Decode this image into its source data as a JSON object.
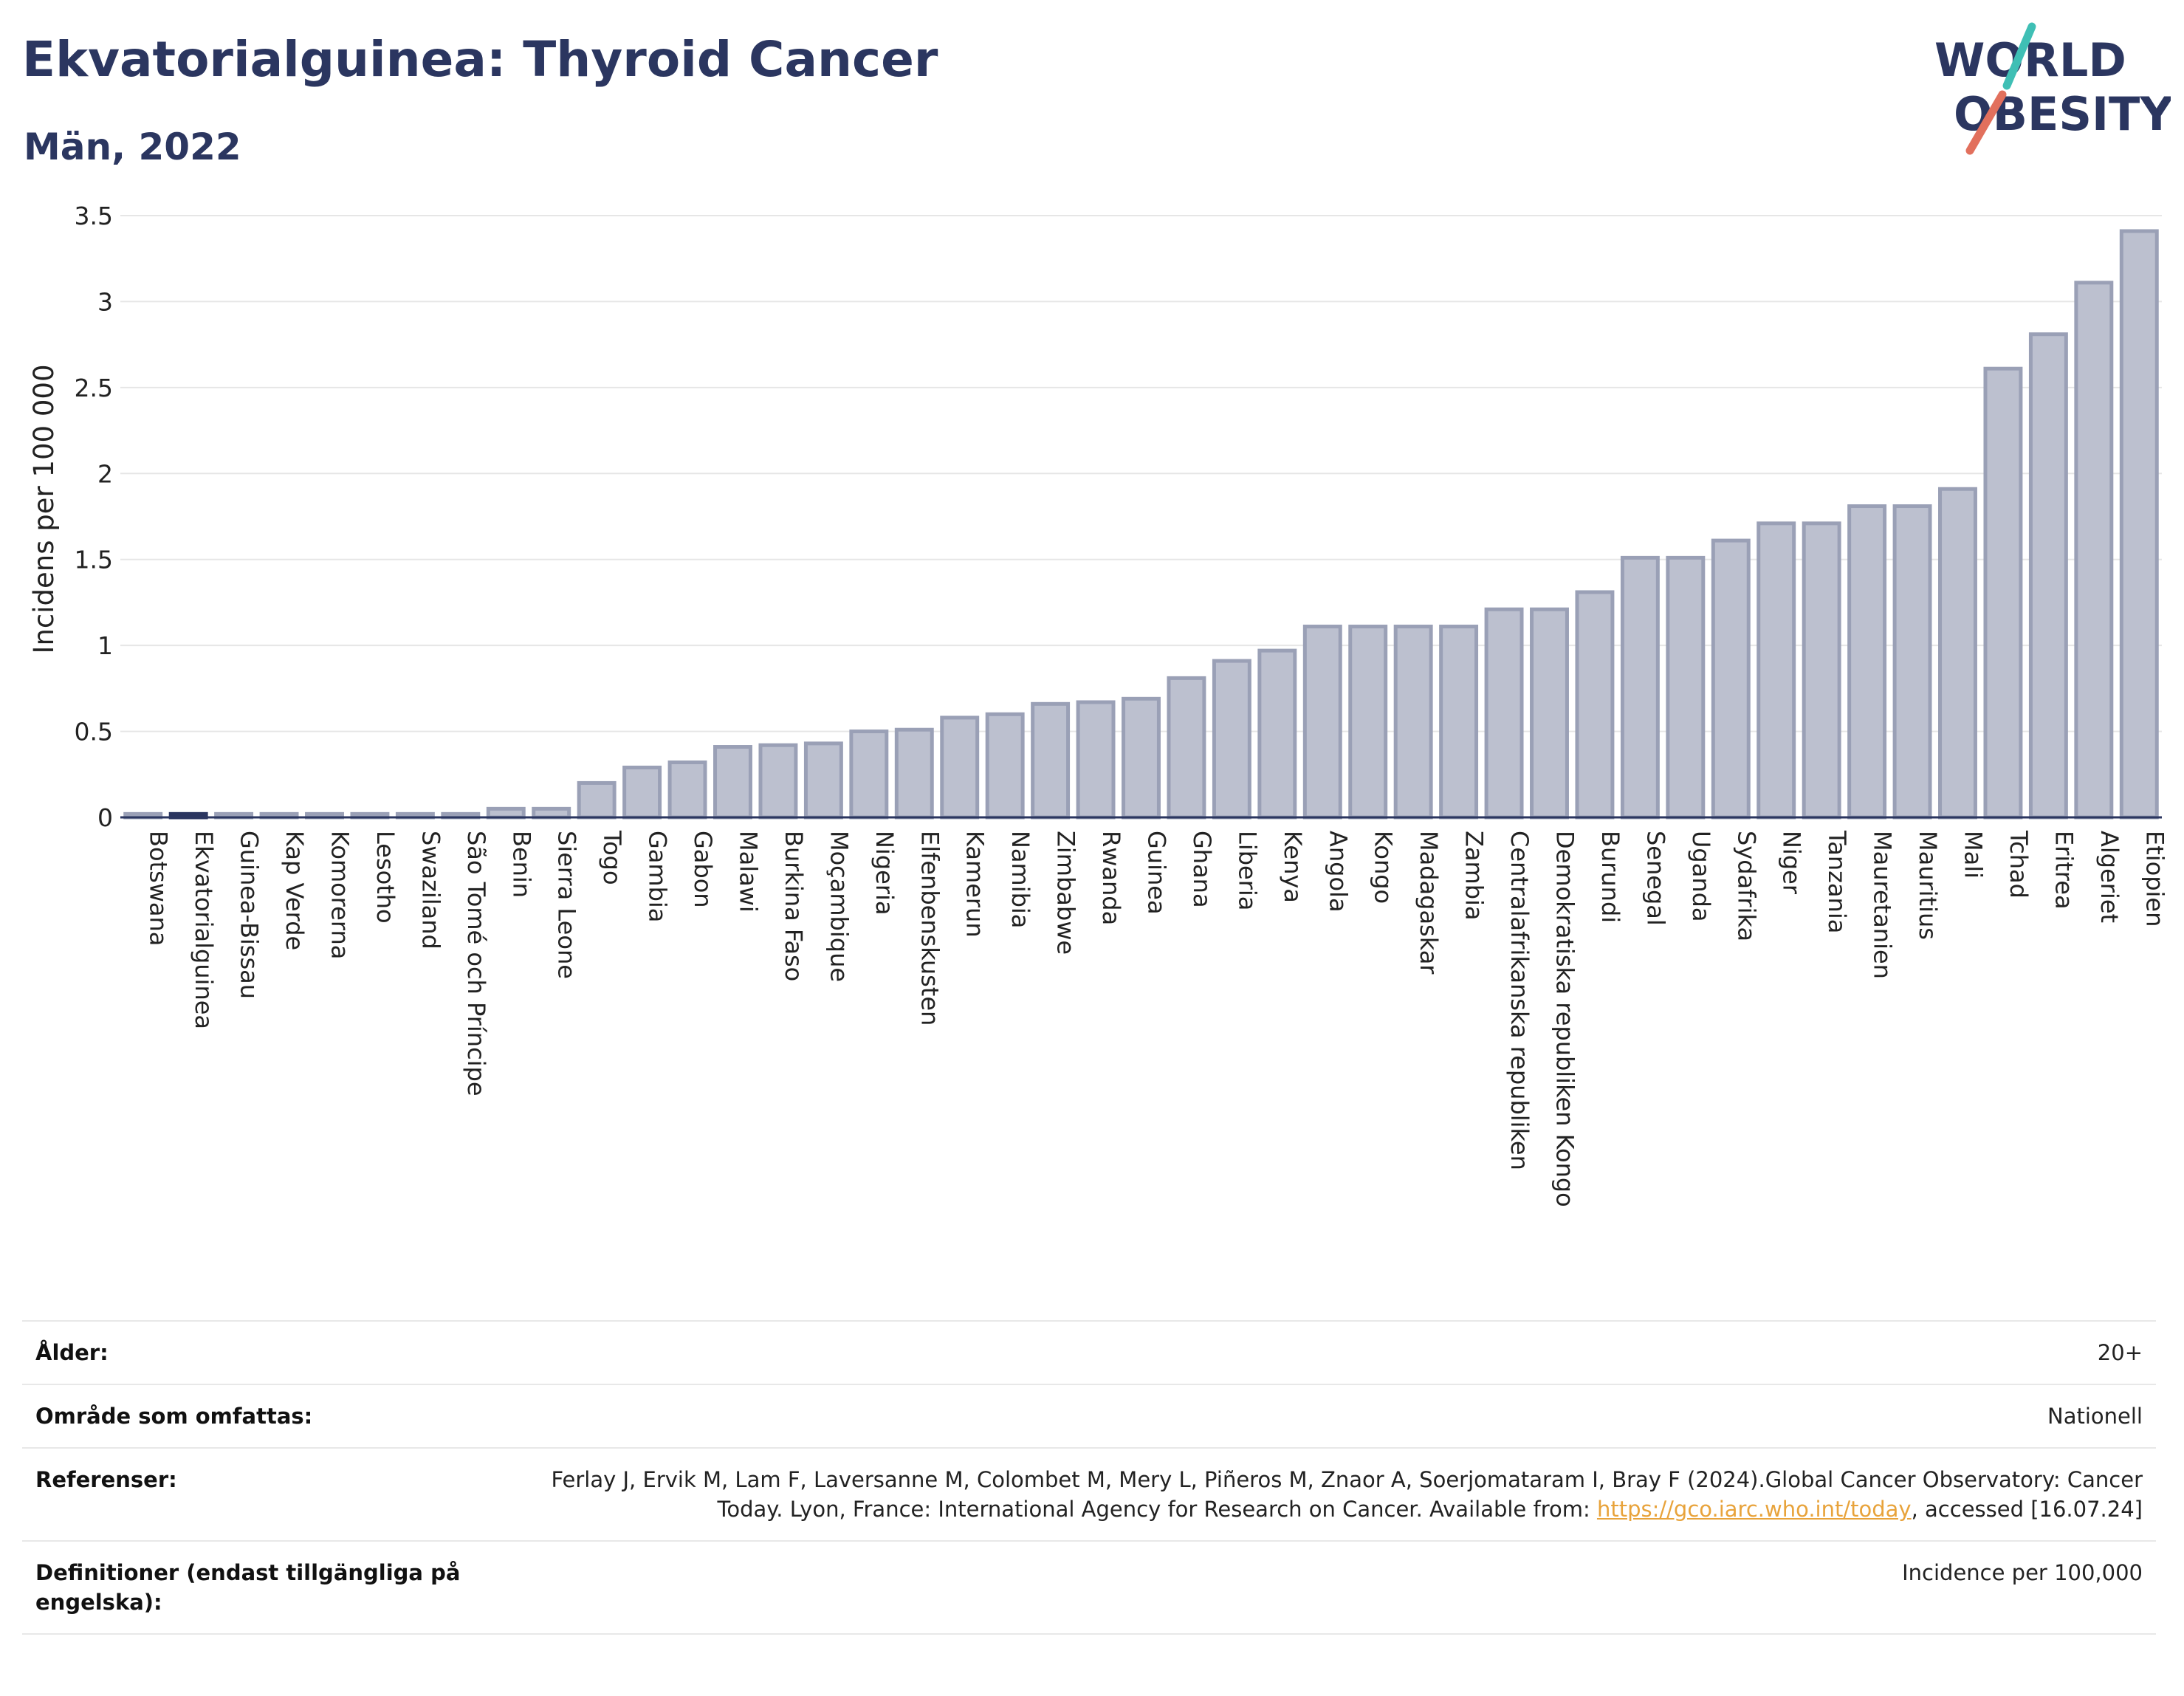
{
  "header": {
    "title": "Ekvatorialguinea: Thyroid Cancer",
    "subtitle": "Män, 2022"
  },
  "logo": {
    "line1": "WORLD",
    "line2": "OBESITY",
    "accent_colors": [
      "#3fbfb5",
      "#e2705d"
    ],
    "text_color": "#2b3660"
  },
  "chart_data": {
    "type": "bar",
    "title": "Ekvatorialguinea: Thyroid Cancer",
    "subtitle": "Män, 2022",
    "xlabel": "",
    "ylabel": "Incidens per 100 000",
    "ylim": [
      0,
      3.5
    ],
    "yticks": [
      0,
      0.5,
      1,
      1.5,
      2,
      2.5,
      3,
      3.5
    ],
    "ytick_labels": [
      "0",
      "0.5",
      "1",
      "1.5",
      "2",
      "2.5",
      "3",
      "3.5"
    ],
    "grid": true,
    "highlight_category": "Ekvatorialguinea",
    "colors": {
      "bar": "#bcc0cf",
      "bar_edge": "#9aa0b6",
      "highlight": "#2b3660",
      "grid": "#e6e6e6",
      "axis": "#2b3660"
    },
    "categories": [
      "Botswana",
      "Ekvatorialguinea",
      "Guinea-Bissau",
      "Kap Verde",
      "Komorerna",
      "Lesotho",
      "Swaziland",
      "São Tomé och Príncipe",
      "Benin",
      "Sierra Leone",
      "Togo",
      "Gambia",
      "Gabon",
      "Malawi",
      "Burkina Faso",
      "Moçambique",
      "Nigeria",
      "Elfenbenskusten",
      "Kamerun",
      "Namibia",
      "Zimbabwe",
      "Rwanda",
      "Guinea",
      "Ghana",
      "Liberia",
      "Kenya",
      "Angola",
      "Kongo",
      "Madagaskar",
      "Zambia",
      "Centralafrikanska republiken",
      "Demokratiska republiken Kongo",
      "Burundi",
      "Senegal",
      "Uganda",
      "Sydafrika",
      "Niger",
      "Tanzania",
      "Mauretanien",
      "Mauritius",
      "Mali",
      "Tchad",
      "Eritrea",
      "Algeriet",
      "Etiopien"
    ],
    "values": [
      0.02,
      0.02,
      0.02,
      0.02,
      0.02,
      0.02,
      0.02,
      0.02,
      0.05,
      0.05,
      0.2,
      0.29,
      0.32,
      0.41,
      0.42,
      0.43,
      0.5,
      0.51,
      0.58,
      0.6,
      0.66,
      0.67,
      0.69,
      0.81,
      0.91,
      0.97,
      1.11,
      1.11,
      1.11,
      1.11,
      1.21,
      1.21,
      1.31,
      1.51,
      1.51,
      1.61,
      1.71,
      1.71,
      1.81,
      1.81,
      1.91,
      2.61,
      2.81,
      3.11,
      3.41
    ]
  },
  "info": [
    {
      "key": "Ålder:",
      "value": "20+"
    },
    {
      "key": "Område som omfattas:",
      "value": "Nationell"
    },
    {
      "key": "Referenser:",
      "value_pre": "Ferlay J, Ervik M, Lam F, Laversanne M, Colombet M, Mery L, Piñeros M, Znaor A, Soerjomataram I, Bray F (2024).Global Cancer Observatory: Cancer Today. Lyon, France: International Agency for Research on Cancer. Available from: ",
      "link": "https://gco.iarc.who.int/today",
      "value_post": ", accessed [16.07.24]"
    },
    {
      "key": "Definitioner (endast tillgängliga på engelska):",
      "value": "Incidence per 100,000"
    }
  ]
}
